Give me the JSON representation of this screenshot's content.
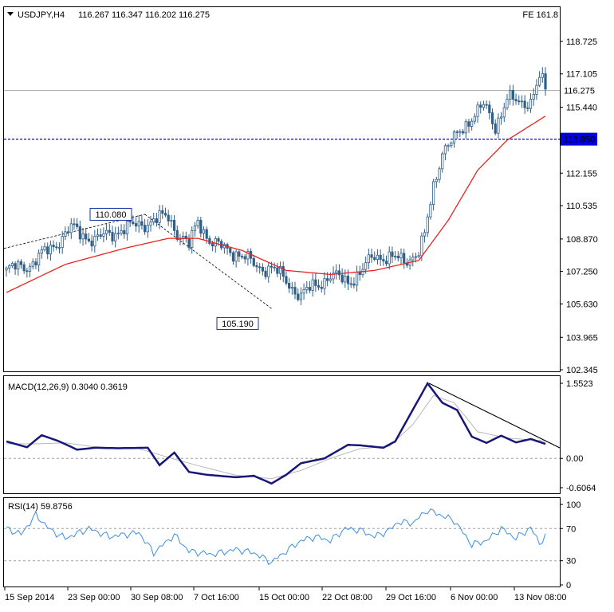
{
  "header": {
    "symbol": "USDJPY,H4",
    "ohlc": "116.267 116.347 116.202 116.275",
    "fe": "FE 161.8"
  },
  "price_panel": {
    "y_ticks": [
      "118.725",
      "117.105",
      "115.440",
      "113.850",
      "112.155",
      "110.535",
      "108.870",
      "107.250",
      "105.630",
      "103.965",
      "102.345"
    ],
    "current_price": "116.275",
    "level": "113.850",
    "swing_high": "110.080",
    "swing_low": "105.190"
  },
  "macd_panel": {
    "title": "MACD(12,26,9) 0.3040 0.3619",
    "y_ticks": [
      "1.5523",
      "0.00",
      "-0.6064"
    ]
  },
  "rsi_panel": {
    "title": "RSI(14) 59.8756",
    "y_ticks": [
      "100",
      "70",
      "30",
      "0"
    ]
  },
  "x_ticks": [
    "15 Sep 2014",
    "23 Sep 00:00",
    "30 Sep 08:00",
    "7 Oct 16:00",
    "15 Oct 00:00",
    "22 Oct 08:00",
    "29 Oct 16:00",
    "6 Nov 00:00",
    "13 Nov 08:00"
  ],
  "colors": {
    "candles": "#2f5f8a",
    "ma": "#e8231e",
    "level_line": "#0000e0",
    "macd": "#17177a",
    "signal": "#b8b8b8",
    "rsi": "#3d8fe0",
    "trendline": "#000000"
  },
  "chart_data": [
    {
      "type": "candlestick",
      "title": "USDJPY,H4",
      "x_labels": [
        "15 Sep 2014",
        "23 Sep 00:00",
        "30 Sep 08:00",
        "7 Oct 16:00",
        "15 Oct 00:00",
        "22 Oct 08:00",
        "29 Oct 16:00",
        "6 Nov 00:00",
        "13 Nov 08:00"
      ],
      "ylim": [
        102.345,
        118.725
      ],
      "close_path": [
        [
          0,
          107.3
        ],
        [
          8,
          107.6
        ],
        [
          15,
          108.4
        ],
        [
          22,
          109.4
        ],
        [
          30,
          108.8
        ],
        [
          38,
          109.3
        ],
        [
          48,
          109.7
        ],
        [
          55,
          110.0
        ],
        [
          58,
          109.2
        ],
        [
          62,
          108.5
        ],
        [
          65,
          109.8
        ],
        [
          70,
          108.6
        ],
        [
          78,
          108.2
        ],
        [
          85,
          107.5
        ],
        [
          90,
          107.4
        ],
        [
          95,
          106.8
        ],
        [
          100,
          106.0
        ],
        [
          105,
          106.6
        ],
        [
          110,
          107.0
        ],
        [
          116,
          106.8
        ],
        [
          120,
          107.1
        ],
        [
          125,
          108.1
        ],
        [
          130,
          107.9
        ],
        [
          135,
          107.8
        ],
        [
          140,
          108.2
        ],
        [
          142,
          109.0
        ],
        [
          145,
          111.5
        ],
        [
          148,
          113.3
        ],
        [
          152,
          113.8
        ],
        [
          158,
          115.0
        ],
        [
          162,
          115.5
        ],
        [
          166,
          114.5
        ],
        [
          170,
          115.9
        ],
        [
          174,
          115.6
        ],
        [
          178,
          115.8
        ],
        [
          181,
          116.9
        ],
        [
          183,
          116.3
        ]
      ],
      "ma_path": [
        [
          0,
          106.2
        ],
        [
          20,
          107.6
        ],
        [
          40,
          108.4
        ],
        [
          55,
          108.9
        ],
        [
          65,
          108.9
        ],
        [
          80,
          108.3
        ],
        [
          95,
          107.3
        ],
        [
          110,
          107.1
        ],
        [
          125,
          107.3
        ],
        [
          140,
          107.8
        ],
        [
          150,
          109.8
        ],
        [
          160,
          112.3
        ],
        [
          170,
          113.8
        ],
        [
          183,
          115.0
        ]
      ],
      "horizontal_level": 113.85,
      "annotations": [
        "110.080",
        "105.190"
      ],
      "fibonacci_expansion": "FE 161.8"
    },
    {
      "type": "line",
      "title": "MACD(12,26,9) 0.3040 0.3619",
      "ylim": [
        -0.6064,
        1.5523
      ],
      "series": [
        {
          "name": "MACD",
          "points": [
            [
              0,
              0.35
            ],
            [
              7,
              0.23
            ],
            [
              12,
              0.48
            ],
            [
              18,
              0.35
            ],
            [
              24,
              0.18
            ],
            [
              30,
              0.22
            ],
            [
              38,
              0.21
            ],
            [
              48,
              0.22
            ],
            [
              52,
              -0.14
            ],
            [
              57,
              0.12
            ],
            [
              62,
              -0.28
            ],
            [
              68,
              -0.34
            ],
            [
              78,
              -0.39
            ],
            [
              84,
              -0.36
            ],
            [
              90,
              -0.52
            ],
            [
              95,
              -0.34
            ],
            [
              100,
              -0.1
            ],
            [
              108,
              0.0
            ],
            [
              116,
              0.28
            ],
            [
              120,
              0.27
            ],
            [
              128,
              0.22
            ],
            [
              132,
              0.35
            ],
            [
              137,
              0.9
            ],
            [
              143,
              1.55
            ],
            [
              148,
              1.15
            ],
            [
              153,
              1.0
            ],
            [
              158,
              0.45
            ],
            [
              163,
              0.32
            ],
            [
              168,
              0.47
            ],
            [
              173,
              0.33
            ],
            [
              178,
              0.4
            ],
            [
              183,
              0.3
            ]
          ]
        },
        {
          "name": "Signal",
          "points": [
            [
              0,
              0.3
            ],
            [
              10,
              0.3
            ],
            [
              20,
              0.32
            ],
            [
              30,
              0.24
            ],
            [
              45,
              0.2
            ],
            [
              55,
              0.02
            ],
            [
              65,
              -0.15
            ],
            [
              78,
              -0.35
            ],
            [
              90,
              -0.42
            ],
            [
              100,
              -0.25
            ],
            [
              110,
              0.0
            ],
            [
              120,
              0.2
            ],
            [
              130,
              0.25
            ],
            [
              138,
              0.7
            ],
            [
              145,
              1.3
            ],
            [
              152,
              1.15
            ],
            [
              160,
              0.55
            ],
            [
              170,
              0.42
            ],
            [
              183,
              0.36
            ]
          ]
        }
      ]
    },
    {
      "type": "line",
      "title": "RSI(14) 59.8756",
      "ylim": [
        0,
        100
      ],
      "levels": [
        70,
        30
      ],
      "series": [
        {
          "name": "RSI",
          "points": [
            [
              0,
              70
            ],
            [
              5,
              63
            ],
            [
              10,
              87
            ],
            [
              15,
              68
            ],
            [
              20,
              58
            ],
            [
              28,
              70
            ],
            [
              35,
              60
            ],
            [
              45,
              65
            ],
            [
              50,
              40
            ],
            [
              57,
              62
            ],
            [
              62,
              42
            ],
            [
              70,
              38
            ],
            [
              78,
              44
            ],
            [
              84,
              40
            ],
            [
              90,
              28
            ],
            [
              95,
              42
            ],
            [
              100,
              55
            ],
            [
              105,
              60
            ],
            [
              110,
              55
            ],
            [
              115,
              70
            ],
            [
              120,
              68
            ],
            [
              125,
              60
            ],
            [
              130,
              68
            ],
            [
              133,
              78
            ],
            [
              138,
              77
            ],
            [
              143,
              93
            ],
            [
              148,
              86
            ],
            [
              152,
              80
            ],
            [
              158,
              50
            ],
            [
              163,
              55
            ],
            [
              168,
              70
            ],
            [
              173,
              58
            ],
            [
              178,
              71
            ],
            [
              181,
              52
            ],
            [
              183,
              59.9
            ]
          ]
        }
      ]
    }
  ]
}
